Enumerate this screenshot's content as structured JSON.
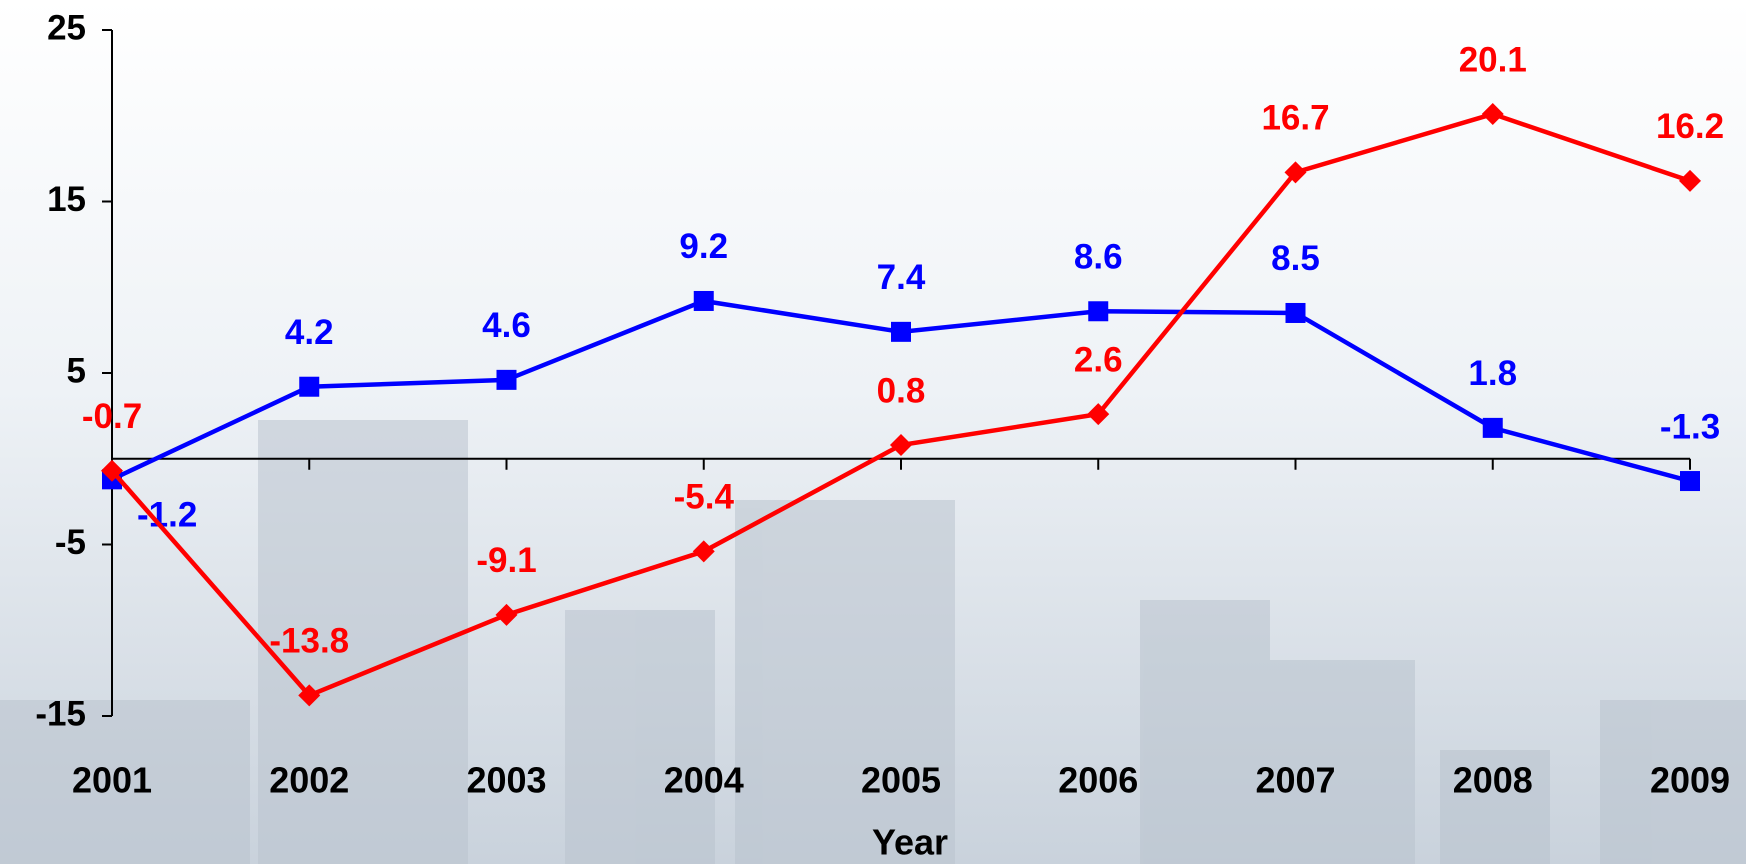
{
  "chart_data": {
    "type": "line",
    "x_label": "Year",
    "categories": [
      "2001",
      "2002",
      "2003",
      "2004",
      "2005",
      "2006",
      "2007",
      "2008",
      "2009"
    ],
    "series": [
      {
        "color": "#0000ff",
        "marker": "square",
        "values": [
          -1.2,
          4.2,
          4.6,
          9.2,
          7.4,
          8.6,
          8.5,
          1.8,
          -1.3
        ]
      },
      {
        "color": "#ff0000",
        "marker": "diamond",
        "values": [
          -0.7,
          -13.8,
          -9.1,
          -5.4,
          0.8,
          2.6,
          16.7,
          20.1,
          16.2
        ]
      }
    ],
    "ylim": [
      -15,
      25
    ],
    "yticks": [
      -15,
      -5,
      5,
      15,
      25
    ],
    "grid": false
  }
}
